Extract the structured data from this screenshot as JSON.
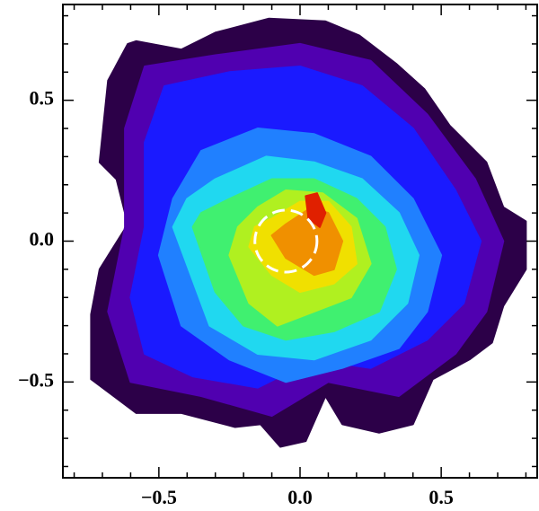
{
  "chart_data": {
    "type": "contour",
    "xlim": [
      -0.84,
      0.84
    ],
    "ylim": [
      -0.84,
      0.84
    ],
    "xticks": [
      {
        "value": -0.5,
        "label": "−0.5"
      },
      {
        "value": 0,
        "label": "0.0"
      },
      0.5
    ],
    "yticks": [
      {
        "value": -0.5,
        "label": "−0.5"
      },
      {
        "value": 0,
        "label": "0.0"
      },
      0.5
    ],
    "minor_ticks": [
      -0.8,
      -0.7,
      -0.6,
      -0.4,
      -0.3,
      -0.2,
      -0.1,
      0.1,
      0.2,
      0.3,
      0.4,
      0.6,
      0.7,
      0.8
    ],
    "contours": [
      {
        "color": "#2c0048",
        "x": [
          -0.58,
          -0.42,
          -0.3,
          -0.11,
          0.09,
          0.21,
          0.34,
          0.44,
          0.53,
          0.66,
          0.72,
          0.8,
          0.8,
          0.72,
          0.68,
          0.6,
          0.47,
          0.4,
          0.28,
          0.15,
          0.09,
          0.02,
          -0.07,
          -0.14,
          -0.23,
          -0.42,
          -0.58,
          -0.74,
          -0.74,
          -0.71,
          -0.61,
          -0.65,
          -0.71,
          -0.68,
          -0.61
        ],
        "y": [
          0.71,
          0.68,
          0.74,
          0.79,
          0.78,
          0.73,
          0.63,
          0.54,
          0.41,
          0.28,
          0.12,
          0.07,
          -0.1,
          -0.23,
          -0.36,
          -0.42,
          -0.49,
          -0.65,
          -0.68,
          -0.65,
          -0.55,
          -0.71,
          -0.73,
          -0.65,
          -0.66,
          -0.61,
          -0.61,
          -0.49,
          -0.26,
          -0.1,
          0.06,
          0.22,
          0.28,
          0.57,
          0.7
        ]
      },
      {
        "color": "#5000b0",
        "x": [
          -0.55,
          -0.3,
          0.0,
          0.25,
          0.45,
          0.62,
          0.72,
          0.66,
          0.55,
          0.35,
          0.1,
          -0.1,
          -0.35,
          -0.6,
          -0.68,
          -0.62,
          -0.62
        ],
        "y": [
          0.62,
          0.66,
          0.7,
          0.64,
          0.45,
          0.22,
          0.0,
          -0.25,
          -0.4,
          -0.55,
          -0.5,
          -0.62,
          -0.55,
          -0.5,
          -0.25,
          0.05,
          0.4
        ]
      },
      {
        "color": "#1a1aff",
        "x": [
          -0.48,
          -0.25,
          0.0,
          0.22,
          0.4,
          0.55,
          0.64,
          0.58,
          0.45,
          0.25,
          0.05,
          -0.15,
          -0.38,
          -0.55,
          -0.6,
          -0.55,
          -0.55
        ],
        "y": [
          0.55,
          0.6,
          0.62,
          0.55,
          0.4,
          0.18,
          0.0,
          -0.22,
          -0.35,
          -0.45,
          -0.42,
          -0.52,
          -0.48,
          -0.4,
          -0.2,
          0.05,
          0.35
        ]
      },
      {
        "color": "#2080ff",
        "x": [
          -0.35,
          -0.15,
          0.05,
          0.25,
          0.4,
          0.5,
          0.45,
          0.35,
          0.15,
          -0.05,
          -0.25,
          -0.42,
          -0.5,
          -0.45
        ],
        "y": [
          0.32,
          0.4,
          0.38,
          0.3,
          0.15,
          -0.05,
          -0.25,
          -0.38,
          -0.45,
          -0.5,
          -0.42,
          -0.3,
          -0.05,
          0.15
        ]
      },
      {
        "color": "#20d8f0",
        "x": [
          -0.3,
          -0.12,
          0.05,
          0.22,
          0.35,
          0.42,
          0.38,
          0.25,
          0.05,
          -0.15,
          -0.32,
          -0.45,
          -0.4
        ],
        "y": [
          0.22,
          0.3,
          0.28,
          0.22,
          0.1,
          -0.05,
          -0.22,
          -0.35,
          -0.42,
          -0.4,
          -0.3,
          0.05,
          0.15
        ]
      },
      {
        "color": "#40f070",
        "x": [
          -0.25,
          -0.1,
          0.05,
          0.2,
          0.3,
          0.34,
          0.28,
          0.12,
          -0.05,
          -0.2,
          -0.3,
          -0.38,
          -0.35
        ],
        "y": [
          0.15,
          0.22,
          0.22,
          0.15,
          0.05,
          -0.1,
          -0.25,
          -0.32,
          -0.35,
          -0.3,
          -0.18,
          0.05,
          0.1
        ]
      },
      {
        "color": "#b0f020",
        "x": [
          -0.15,
          -0.05,
          0.08,
          0.2,
          0.25,
          0.18,
          0.05,
          -0.08,
          -0.18,
          -0.25,
          -0.22
        ],
        "y": [
          0.12,
          0.18,
          0.17,
          0.08,
          -0.08,
          -0.2,
          -0.25,
          -0.3,
          -0.22,
          -0.05,
          0.05
        ]
      },
      {
        "color": "#f0e000",
        "x": [
          -0.1,
          0.0,
          0.1,
          0.18,
          0.2,
          0.12,
          0.0,
          -0.1,
          -0.18,
          -0.16
        ],
        "y": [
          0.08,
          0.14,
          0.14,
          0.05,
          -0.08,
          -0.15,
          -0.18,
          -0.12,
          -0.02,
          0.05
        ]
      },
      {
        "color": "#f09000",
        "x": [
          -0.05,
          0.04,
          0.1,
          0.15,
          0.12,
          0.05,
          -0.05,
          -0.1
        ],
        "y": [
          0.06,
          0.12,
          0.1,
          0.0,
          -0.1,
          -0.12,
          -0.06,
          0.02
        ]
      },
      {
        "color": "#e02000",
        "x": [
          0.02,
          0.06,
          0.09,
          0.07,
          0.03
        ],
        "y": [
          0.16,
          0.17,
          0.1,
          0.05,
          0.08
        ]
      }
    ],
    "circle": {
      "x": -0.05,
      "y": 0.0,
      "radius": 0.11,
      "color": "#ffffff"
    }
  }
}
